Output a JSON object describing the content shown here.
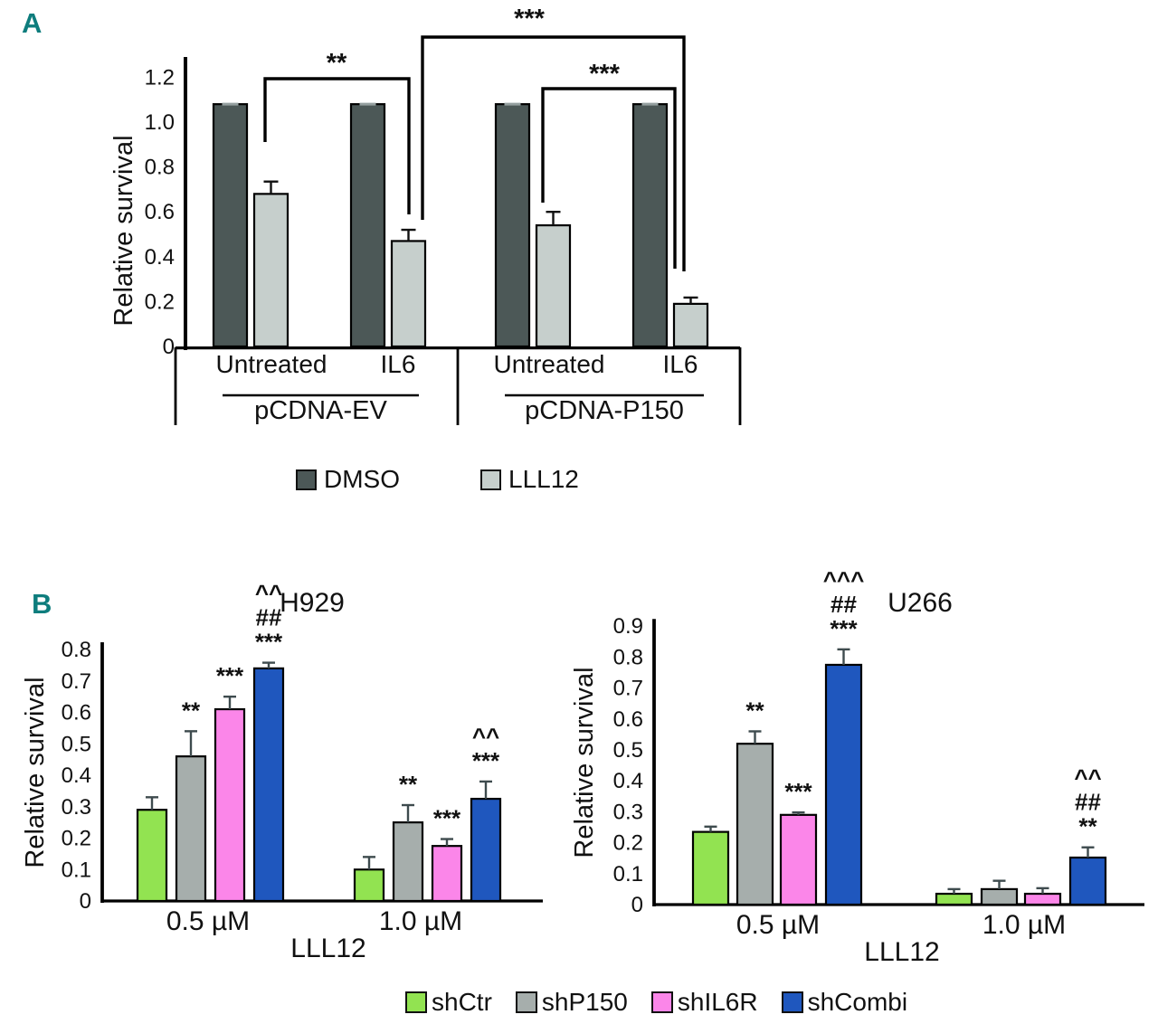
{
  "panels": {
    "a": {
      "label": "A"
    },
    "b": {
      "label": "B"
    }
  },
  "accent_color": "#0e7d7d",
  "chart_data": [
    {
      "id": "panel-a",
      "type": "bar",
      "title": "",
      "ylabel": "Relative survival",
      "xlabel": "",
      "ylim": [
        0,
        1.2
      ],
      "ytick_step": 0.2,
      "grid": false,
      "legend_position": "bottom",
      "legend": [
        "DMSO",
        "LLL12"
      ],
      "series_colors": {
        "DMSO": "#4c5857",
        "LLL12": "#c6cfcc"
      },
      "sections": [
        "pCDNA-EV",
        "pCDNA-P150"
      ],
      "groups": [
        {
          "category": "Untreated",
          "section": "pCDNA-EV",
          "values": [
            1.08,
            0.68
          ],
          "errors": [
            0.008,
            0.055
          ]
        },
        {
          "category": "IL6",
          "section": "pCDNA-EV",
          "values": [
            1.08,
            0.47
          ],
          "errors": [
            0.008,
            0.05
          ]
        },
        {
          "category": "Untreated",
          "section": "pCDNA-P150",
          "values": [
            1.08,
            0.54
          ],
          "errors": [
            0.008,
            0.06
          ]
        },
        {
          "category": "IL6",
          "section": "pCDNA-P150",
          "values": [
            1.08,
            0.19
          ],
          "errors": [
            0.008,
            0.028
          ]
        }
      ],
      "significance": [
        {
          "label": "**",
          "compares": [
            "pCDNA-EV Untreated LLL12",
            "pCDNA-EV IL6 LLL12"
          ]
        },
        {
          "label": "***",
          "compares": [
            "pCDNA-EV IL6 LLL12",
            "pCDNA-P150 IL6 LLL12"
          ]
        },
        {
          "label": "***",
          "compares": [
            "pCDNA-P150 Untreated LLL12",
            "pCDNA-P150 IL6 LLL12"
          ]
        }
      ]
    },
    {
      "id": "panel-b-h929",
      "type": "bar",
      "title": "H929",
      "ylabel": "Relative survival",
      "xlabel": "LLL12",
      "ylim": [
        0,
        0.8
      ],
      "ytick_step": 0.1,
      "grid": false,
      "legend_position": "bottom",
      "categories": [
        "0.5 µM",
        "1.0 µM"
      ],
      "series": [
        {
          "name": "shCtr",
          "color": "#92e351",
          "values": [
            0.29,
            0.1
          ],
          "errors": [
            0.04,
            0.04
          ],
          "annotations": [
            [],
            []
          ]
        },
        {
          "name": "shP150",
          "color": "#a6aeac",
          "values": [
            0.46,
            0.25
          ],
          "errors": [
            0.08,
            0.055
          ],
          "annotations": [
            [
              "**"
            ],
            [
              "**"
            ]
          ]
        },
        {
          "name": "shIL6R",
          "color": "#fb86e9",
          "values": [
            0.61,
            0.175
          ],
          "errors": [
            0.04,
            0.022
          ],
          "annotations": [
            [
              "***"
            ],
            [
              "***"
            ]
          ]
        },
        {
          "name": "shCombi",
          "color": "#1f57be",
          "values": [
            0.74,
            0.325
          ],
          "errors": [
            0.018,
            0.055
          ],
          "annotations": [
            [
              "^^",
              "##",
              "***"
            ],
            [
              "^^",
              "***"
            ]
          ]
        }
      ]
    },
    {
      "id": "panel-b-u266",
      "type": "bar",
      "title": "U266",
      "ylabel": "Relative survival",
      "xlabel": "LLL12",
      "ylim": [
        0,
        0.9
      ],
      "ytick_step": 0.1,
      "grid": false,
      "legend_position": "bottom",
      "categories": [
        "0.5 µM",
        "1.0 µM"
      ],
      "series": [
        {
          "name": "shCtr",
          "color": "#92e351",
          "values": [
            0.235,
            0.035
          ],
          "errors": [
            0.017,
            0.015
          ],
          "annotations": [
            [],
            []
          ]
        },
        {
          "name": "shP150",
          "color": "#a6aeac",
          "values": [
            0.52,
            0.05
          ],
          "errors": [
            0.04,
            0.027
          ],
          "annotations": [
            [
              "**"
            ],
            []
          ]
        },
        {
          "name": "shIL6R",
          "color": "#fb86e9",
          "values": [
            0.29,
            0.035
          ],
          "errors": [
            0.008,
            0.018
          ],
          "annotations": [
            [
              "***"
            ],
            []
          ]
        },
        {
          "name": "shCombi",
          "color": "#1f57be",
          "values": [
            0.775,
            0.152
          ],
          "errors": [
            0.05,
            0.033
          ],
          "annotations": [
            [
              "^^^",
              "##",
              "***"
            ],
            [
              "^^",
              "##",
              "**"
            ]
          ]
        }
      ]
    }
  ],
  "legend_b": [
    {
      "name": "shCtr",
      "color": "#92e351"
    },
    {
      "name": "shP150",
      "color": "#a6aeac"
    },
    {
      "name": "shIL6R",
      "color": "#fb86e9"
    },
    {
      "name": "shCombi",
      "color": "#1f57be"
    }
  ]
}
